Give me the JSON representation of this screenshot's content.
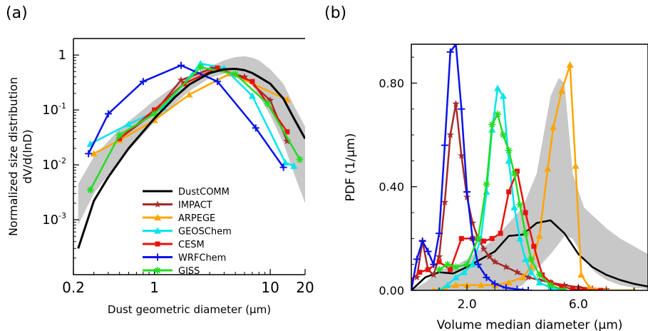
{
  "panels": {
    "a_label": "(a)",
    "b_label": "(b)"
  },
  "chart_data": [
    {
      "type": "line",
      "panel": "(a)",
      "xlabel": "Dust geometric diameter (µm)",
      "ylabel": "Normalized size distribution",
      "ylabel2": "dV/d(lnD)",
      "x_scale": "log",
      "y_scale": "log",
      "xlim": [
        0.2,
        20
      ],
      "ylim": [
        0.0001,
        2
      ],
      "x_ticks": [
        {
          "value": 0.2,
          "label": "0.2"
        },
        {
          "value": 1,
          "label": "1"
        },
        {
          "value": 10,
          "label": "10"
        },
        {
          "value": 20,
          "label": "20"
        }
      ],
      "y_ticks": [
        {
          "value": 1,
          "label": "1"
        },
        {
          "value": 0.1,
          "label": "10",
          "sup": "-1"
        },
        {
          "value": 0.01,
          "label": "10",
          "sup": "-2"
        },
        {
          "value": 0.001,
          "label": "10",
          "sup": "-3"
        }
      ],
      "legend_position": "lower-center",
      "band": {
        "color": "#c8c8c8",
        "x": [
          0.22,
          0.3,
          0.5,
          1.0,
          2.0,
          3.0,
          4.0,
          5.0,
          6.0,
          7.0,
          8.0,
          10.0,
          13.0,
          16.0,
          20.0
        ],
        "lower": [
          0.0008,
          0.003,
          0.012,
          0.06,
          0.22,
          0.38,
          0.46,
          0.45,
          0.38,
          0.28,
          0.18,
          0.08,
          0.025,
          0.007,
          0.002
        ],
        "upper": [
          0.0045,
          0.014,
          0.045,
          0.15,
          0.42,
          0.62,
          0.8,
          0.92,
          0.95,
          0.9,
          0.8,
          0.55,
          0.3,
          0.12,
          0.05
        ]
      },
      "series": [
        {
          "name": "DustCOMM",
          "color": "#000000",
          "marker": "none",
          "width": 3,
          "x": [
            0.22,
            0.3,
            0.4,
            0.6,
            1.0,
            1.5,
            2.0,
            3.0,
            4.0,
            5.0,
            6.0,
            7.0,
            8.0,
            10.0,
            13.0,
            16.0,
            20.0
          ],
          "y": [
            0.0003,
            0.0022,
            0.006,
            0.02,
            0.07,
            0.17,
            0.29,
            0.47,
            0.55,
            0.56,
            0.53,
            0.47,
            0.4,
            0.3,
            0.16,
            0.07,
            0.03
          ]
        },
        {
          "name": "IMPACT",
          "color": "#a52a2a",
          "marker": "star",
          "x": [
            0.5,
            1.0,
            1.7,
            3.2,
            6.0,
            10.0,
            14.0
          ],
          "y": [
            0.03,
            0.09,
            0.35,
            0.58,
            0.4,
            0.15,
            0.027
          ]
        },
        {
          "name": "ARPEGE",
          "color": "#ffa500",
          "marker": "triangle",
          "x": [
            0.3,
            0.5,
            1.0,
            2.0,
            4.5,
            14.0
          ],
          "y": [
            0.016,
            0.028,
            0.065,
            0.19,
            0.46,
            0.155
          ]
        },
        {
          "name": "GEOSChem",
          "color": "#00e5ee",
          "marker": "triangle",
          "x": [
            0.28,
            0.6,
            1.2,
            2.5,
            4.0,
            7.0,
            13.5,
            16.0
          ],
          "y": [
            0.024,
            0.055,
            0.11,
            0.7,
            0.58,
            0.18,
            0.011,
            0.0095
          ]
        },
        {
          "name": "CESM",
          "color": "#e8120c",
          "marker": "square",
          "x": [
            0.5,
            1.0,
            1.8,
            3.5,
            7.0,
            14.0
          ],
          "y": [
            0.03,
            0.1,
            0.3,
            0.58,
            0.33,
            0.04
          ]
        },
        {
          "name": "WRFChem",
          "color": "#0a14e6",
          "marker": "plus",
          "x": [
            0.27,
            0.4,
            0.8,
            1.7,
            3.5,
            7.5,
            13.0
          ],
          "y": [
            0.016,
            0.085,
            0.33,
            0.65,
            0.33,
            0.047,
            0.009
          ]
        },
        {
          "name": "GISS",
          "color": "#22dd22",
          "marker": "asterisk",
          "x": [
            0.28,
            0.5,
            1.0,
            2.5,
            5.0,
            9.5,
            18.0
          ],
          "y": [
            0.0035,
            0.035,
            0.085,
            0.6,
            0.45,
            0.13,
            0.0125
          ]
        }
      ]
    },
    {
      "type": "line",
      "panel": "(b)",
      "xlabel": "Volume median diameter (µm)",
      "ylabel": "PDF (1/µm)",
      "xlim": [
        0.0,
        8.5
      ],
      "ylim": [
        0.0,
        0.95
      ],
      "x_ticks": [
        {
          "value": 2.0,
          "label": "2.0"
        },
        {
          "value": 6.0,
          "label": "6.0"
        }
      ],
      "y_ticks": [
        {
          "value": 0.0,
          "label": "0.00"
        },
        {
          "value": 0.4,
          "label": "0.40"
        },
        {
          "value": 0.8,
          "label": "0.80"
        }
      ],
      "band": {
        "color": "#c8c8c8",
        "x": [
          0.0,
          0.5,
          1.0,
          1.5,
          2.0,
          2.5,
          3.0,
          3.5,
          4.0,
          4.5,
          5.0,
          5.3,
          5.5,
          5.8,
          6.2,
          6.6,
          7.0,
          7.5,
          8.0,
          8.5
        ],
        "lower": [
          0.0,
          0.0,
          0.0,
          0.0,
          0.0,
          0.0,
          0.0,
          0.0,
          0.02,
          0.08,
          0.14,
          0.18,
          0.21,
          0.2,
          0.12,
          0.07,
          0.04,
          0.02,
          0.01,
          0.005
        ],
        "upper": [
          0.0,
          0.03,
          0.08,
          0.09,
          0.12,
          0.16,
          0.2,
          0.26,
          0.32,
          0.45,
          0.75,
          0.82,
          0.8,
          0.45,
          0.32,
          0.28,
          0.24,
          0.2,
          0.17,
          0.14
        ]
      },
      "series": [
        {
          "name": "DustCOMM",
          "color": "#000000",
          "marker": "none",
          "width": 2.5,
          "x": [
            0.0,
            0.5,
            1.0,
            1.5,
            2.0,
            2.5,
            3.0,
            3.5,
            4.0,
            4.5,
            5.0,
            5.5,
            6.0,
            6.5,
            7.0,
            7.5,
            8.0,
            8.5
          ],
          "y": [
            0.0,
            0.05,
            0.07,
            0.065,
            0.09,
            0.12,
            0.15,
            0.21,
            0.215,
            0.26,
            0.27,
            0.22,
            0.14,
            0.09,
            0.06,
            0.04,
            0.025,
            0.015
          ]
        },
        {
          "name": "IMPACT",
          "color": "#a52a2a",
          "marker": "star",
          "x": [
            0.2,
            0.4,
            0.6,
            0.8,
            1.0,
            1.2,
            1.4,
            1.6,
            1.8,
            2.0,
            2.2,
            2.4,
            2.6,
            2.8,
            3.0,
            3.4,
            3.8,
            4.2,
            4.6,
            5.0,
            5.5,
            6.0,
            6.5,
            7.0
          ],
          "y": [
            0.05,
            0.19,
            0.08,
            0.06,
            0.13,
            0.34,
            0.6,
            0.72,
            0.52,
            0.36,
            0.26,
            0.2,
            0.16,
            0.13,
            0.11,
            0.09,
            0.07,
            0.05,
            0.04,
            0.03,
            0.02,
            0.012,
            0.006,
            0.003
          ]
        },
        {
          "name": "ARPEGE",
          "color": "#ffa500",
          "marker": "triangle",
          "x": [
            0.8,
            1.2,
            1.6,
            2.0,
            2.5,
            3.0,
            3.5,
            4.0,
            4.3,
            4.6,
            4.9,
            5.1,
            5.4,
            5.7,
            5.9,
            6.1,
            6.4,
            7.0,
            8.0
          ],
          "y": [
            0.0,
            0.01,
            0.02,
            0.02,
            0.02,
            0.02,
            0.03,
            0.05,
            0.09,
            0.21,
            0.47,
            0.63,
            0.77,
            0.87,
            0.48,
            0.06,
            0.01,
            0.0,
            0.0
          ]
        },
        {
          "name": "GEOSChem",
          "color": "#00e5ee",
          "marker": "triangle",
          "x": [
            1.0,
            1.3,
            1.6,
            1.9,
            2.2,
            2.5,
            2.7,
            2.9,
            3.1,
            3.3,
            3.5,
            3.7,
            3.9,
            4.1,
            4.3,
            4.6,
            5.0,
            5.5
          ],
          "y": [
            0.0,
            0.02,
            0.05,
            0.07,
            0.1,
            0.2,
            0.38,
            0.62,
            0.78,
            0.75,
            0.5,
            0.32,
            0.2,
            0.12,
            0.07,
            0.03,
            0.01,
            0.0
          ]
        },
        {
          "name": "CESM",
          "color": "#e8120c",
          "marker": "square",
          "x": [
            0.0,
            0.3,
            0.6,
            1.0,
            1.4,
            1.8,
            2.2,
            2.6,
            2.9,
            3.2,
            3.5,
            3.8,
            4.1,
            4.4,
            4.7,
            5.0,
            5.4,
            5.8,
            6.2,
            6.8
          ],
          "y": [
            0.04,
            0.07,
            0.08,
            0.11,
            0.08,
            0.2,
            0.2,
            0.19,
            0.2,
            0.22,
            0.38,
            0.46,
            0.3,
            0.17,
            0.06,
            0.03,
            0.015,
            0.005,
            0.002,
            0.0
          ]
        },
        {
          "name": "WRFChem",
          "color": "#0a14e6",
          "marker": "plus",
          "x": [
            0.0,
            0.2,
            0.4,
            0.6,
            0.8,
            1.0,
            1.2,
            1.4,
            1.6,
            1.8,
            2.0,
            2.2,
            2.4,
            2.7,
            3.0,
            3.4,
            3.8,
            4.2
          ],
          "y": [
            0.0,
            0.12,
            0.19,
            0.15,
            0.1,
            0.22,
            0.56,
            0.92,
            0.95,
            0.7,
            0.38,
            0.2,
            0.1,
            0.05,
            0.025,
            0.01,
            0.004,
            0.0
          ]
        },
        {
          "name": "GISS",
          "color": "#22dd22",
          "marker": "asterisk",
          "x": [
            1.0,
            1.3,
            1.6,
            2.0,
            2.4,
            2.7,
            2.9,
            3.1,
            3.3,
            3.5,
            3.7,
            3.9,
            4.1,
            4.3,
            4.6,
            5.0,
            5.5
          ],
          "y": [
            0.08,
            0.1,
            0.09,
            0.1,
            0.2,
            0.41,
            0.64,
            0.68,
            0.6,
            0.54,
            0.45,
            0.33,
            0.22,
            0.12,
            0.06,
            0.02,
            0.0
          ]
        }
      ]
    }
  ]
}
